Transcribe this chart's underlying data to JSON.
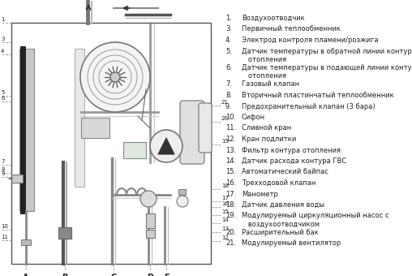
{
  "bg_color": "#ffffff",
  "text_color": "#222222",
  "line_color": "#555555",
  "dark_color": "#333333",
  "dashed_color": "#999999",
  "legend_items": [
    {
      "num": "1.",
      "text": "Воздухоотводчик",
      "wrap": false
    },
    {
      "num": "3.",
      "text": "Первичный теплообменник",
      "wrap": false
    },
    {
      "num": "4.",
      "text": "Электрод контроля пламени/розжига",
      "wrap": false
    },
    {
      "num": "5.",
      "text": "Датчик температуры в обратной линии контура\n   отопления",
      "wrap": true
    },
    {
      "num": "6.",
      "text": "Датчик температуры в подающей линии контура\n   отопления",
      "wrap": true
    },
    {
      "num": "7.",
      "text": "Газовый клапан",
      "wrap": false
    },
    {
      "num": "8.",
      "text": "Вторичный пластинчатый теплообменник",
      "wrap": false
    },
    {
      "num": "9.",
      "text": "Предохранительный клапан (3 бара)",
      "wrap": false
    },
    {
      "num": "10.",
      "text": "Сифон",
      "wrap": false
    },
    {
      "num": "11.",
      "text": "Сливной кран",
      "wrap": false
    },
    {
      "num": "12.",
      "text": "Кран подлитки",
      "wrap": false
    },
    {
      "num": "13.",
      "text": "Фильтр контура отопления",
      "wrap": false
    },
    {
      "num": "14.",
      "text": "Датчик расхода контура ГВС",
      "wrap": false
    },
    {
      "num": "15.",
      "text": "Автоматический байпас",
      "wrap": false
    },
    {
      "num": "16.",
      "text": "Трехходовой клапан",
      "wrap": false
    },
    {
      "num": "17.",
      "text": "Манометр",
      "wrap": false
    },
    {
      "num": "18.",
      "text": "Датчик давления воды",
      "wrap": false
    },
    {
      "num": "19.",
      "text": "Модулируемый циркуляционный насос с\n   воздухоотводчиком",
      "wrap": true
    },
    {
      "num": "20.",
      "text": "Расширительный бак",
      "wrap": false
    },
    {
      "num": "21.",
      "text": "Модулируемый вентилятор",
      "wrap": false
    }
  ],
  "left_labels": [
    "1",
    "3",
    "4",
    "5",
    "6",
    "7",
    "8",
    "9",
    "10",
    "11"
  ],
  "right_labels": [
    "21",
    "20",
    "19",
    "18",
    "17",
    "16",
    "15",
    "14",
    "13",
    "12"
  ],
  "bottom_labels": [
    "A",
    "B",
    "C",
    "D",
    "E"
  ]
}
